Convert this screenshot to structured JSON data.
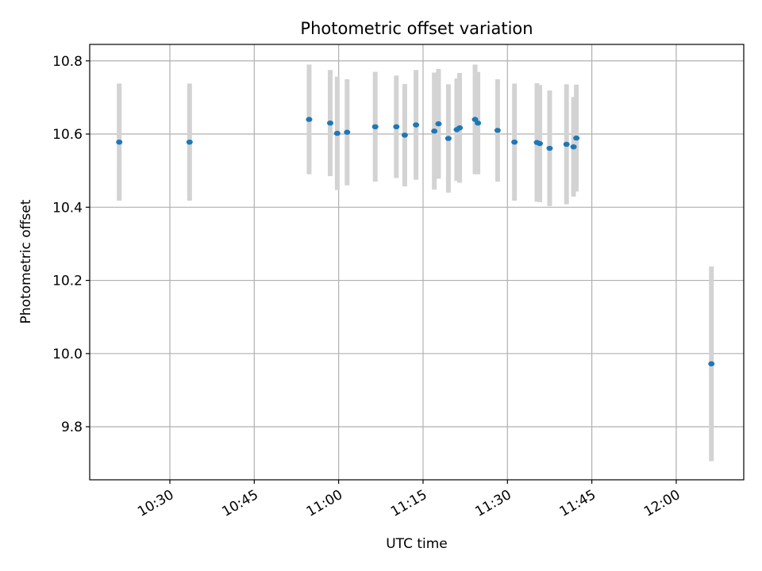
{
  "chart_data": {
    "type": "scatter",
    "title": "Photometric offset variation",
    "xlabel": "UTC time",
    "ylabel": "Photometric offset",
    "x_is_time": true,
    "xlim": [
      "10:15:45",
      "12:12:00"
    ],
    "ylim": [
      9.655,
      10.845
    ],
    "x_ticks": [
      "10:30",
      "10:45",
      "11:00",
      "11:15",
      "11:30",
      "11:45",
      "12:00"
    ],
    "y_ticks": [
      9.8,
      10.0,
      10.2,
      10.4,
      10.6,
      10.8
    ],
    "grid": true,
    "point_color": "#1f77b4",
    "errorbar_color": "#d3d3d3",
    "points": [
      {
        "t": "10:21:00",
        "y": 10.578,
        "err": 0.16
      },
      {
        "t": "10:33:30",
        "y": 10.578,
        "err": 0.16
      },
      {
        "t": "10:54:45",
        "y": 10.64,
        "err": 0.15
      },
      {
        "t": "10:58:30",
        "y": 10.63,
        "err": 0.145
      },
      {
        "t": "10:59:45",
        "y": 10.602,
        "err": 0.155
      },
      {
        "t": "11:01:30",
        "y": 10.605,
        "err": 0.145
      },
      {
        "t": "11:06:30",
        "y": 10.62,
        "err": 0.15
      },
      {
        "t": "11:10:15",
        "y": 10.62,
        "err": 0.14
      },
      {
        "t": "11:11:45",
        "y": 10.597,
        "err": 0.14
      },
      {
        "t": "11:13:45",
        "y": 10.625,
        "err": 0.15
      },
      {
        "t": "11:17:00",
        "y": 10.608,
        "err": 0.16
      },
      {
        "t": "11:17:45",
        "y": 10.628,
        "err": 0.15
      },
      {
        "t": "11:19:30",
        "y": 10.588,
        "err": 0.148
      },
      {
        "t": "11:21:00",
        "y": 10.612,
        "err": 0.14
      },
      {
        "t": "11:21:30",
        "y": 10.617,
        "err": 0.15
      },
      {
        "t": "11:24:15",
        "y": 10.64,
        "err": 0.15
      },
      {
        "t": "11:24:45",
        "y": 10.63,
        "err": 0.14
      },
      {
        "t": "11:28:15",
        "y": 10.61,
        "err": 0.14
      },
      {
        "t": "11:31:15",
        "y": 10.578,
        "err": 0.16
      },
      {
        "t": "11:35:15",
        "y": 10.577,
        "err": 0.162
      },
      {
        "t": "11:35:45",
        "y": 10.574,
        "err": 0.16
      },
      {
        "t": "11:37:30",
        "y": 10.561,
        "err": 0.158
      },
      {
        "t": "11:40:30",
        "y": 10.572,
        "err": 0.164
      },
      {
        "t": "11:41:45",
        "y": 10.565,
        "err": 0.136
      },
      {
        "t": "11:42:15",
        "y": 10.589,
        "err": 0.146
      },
      {
        "t": "12:06:15",
        "y": 9.972,
        "err": 0.266
      }
    ]
  }
}
